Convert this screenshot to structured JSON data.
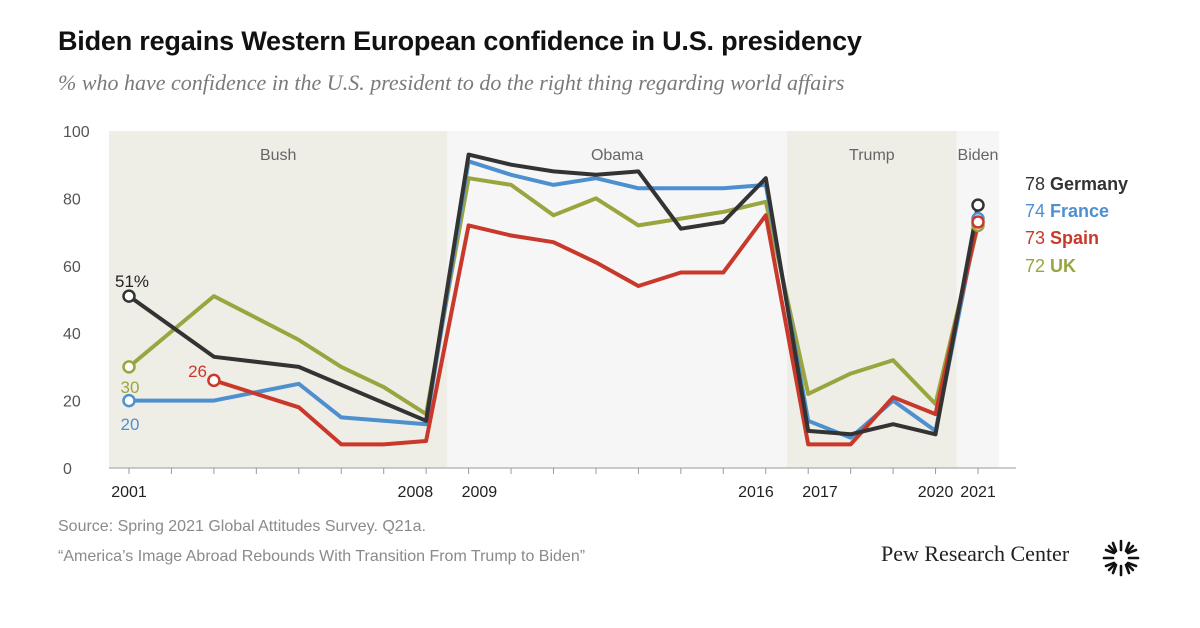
{
  "title": "Biden regains Western European confidence in U.S. presidency",
  "subtitle": "% who have confidence in the U.S. president to do the right thing regarding world affairs",
  "source": "Source: Spring 2021 Global Attitudes Survey. Q21a.",
  "note": "“America’s Image Abroad Rebounds With Transition From Trump to Biden”",
  "brand": "Pew Research Center",
  "chart_data": {
    "type": "line",
    "ylim": [
      0,
      100
    ],
    "yticks": [
      0,
      20,
      40,
      60,
      80,
      100
    ],
    "xlim": [
      2001,
      2021.5
    ],
    "xtick_labels": [
      {
        "x": 2001,
        "label": "2001"
      },
      {
        "x": 2008,
        "label": "2008"
      },
      {
        "x": 2009,
        "label": "2009"
      },
      {
        "x": 2016,
        "label": "2016"
      },
      {
        "x": 2017,
        "label": "2017"
      },
      {
        "x": 2020,
        "label": "2020"
      },
      {
        "x": 2021,
        "label": "2021"
      }
    ],
    "grid": false,
    "eras": [
      {
        "name": "Bush",
        "start": 2000.5,
        "end": 2008.5,
        "color": "#efeee6"
      },
      {
        "name": "Obama",
        "start": 2008.5,
        "end": 2016.5,
        "color": "#f6f6f6"
      },
      {
        "name": "Trump",
        "start": 2016.5,
        "end": 2020.5,
        "color": "#efeee6"
      },
      {
        "name": "Biden",
        "start": 2020.5,
        "end": 2021.5,
        "color": "#f6f6f6"
      }
    ],
    "series": [
      {
        "name": "UK",
        "color": "#9aa53f",
        "points": [
          [
            2001,
            30
          ],
          [
            2003,
            51
          ],
          [
            2005,
            38
          ],
          [
            2006,
            30
          ],
          [
            2007,
            24
          ],
          [
            2008,
            16
          ],
          [
            2009,
            86
          ],
          [
            2010,
            84
          ],
          [
            2011,
            75
          ],
          [
            2012,
            80
          ],
          [
            2013,
            72
          ],
          [
            2014,
            74
          ],
          [
            2015,
            76
          ],
          [
            2016,
            79
          ],
          [
            2017,
            22
          ],
          [
            2018,
            28
          ],
          [
            2019,
            32
          ],
          [
            2020,
            19
          ],
          [
            2021,
            72
          ]
        ],
        "start_label": "30",
        "end_label": {
          "value": "72",
          "name": "UK"
        }
      },
      {
        "name": "France",
        "color": "#4e90cf",
        "points": [
          [
            2001,
            20
          ],
          [
            2003,
            20
          ],
          [
            2005,
            25
          ],
          [
            2006,
            15
          ],
          [
            2007,
            14
          ],
          [
            2008,
            13
          ],
          [
            2009,
            91
          ],
          [
            2010,
            87
          ],
          [
            2011,
            84
          ],
          [
            2012,
            86
          ],
          [
            2013,
            83
          ],
          [
            2014,
            83
          ],
          [
            2015,
            83
          ],
          [
            2016,
            84
          ],
          [
            2017,
            14
          ],
          [
            2018,
            9
          ],
          [
            2019,
            20
          ],
          [
            2020,
            11
          ],
          [
            2021,
            74
          ]
        ],
        "start_label": "20",
        "end_label": {
          "value": "74",
          "name": "France"
        }
      },
      {
        "name": "Spain",
        "color": "#c9392b",
        "points": [
          [
            2003,
            26
          ],
          [
            2005,
            18
          ],
          [
            2006,
            7
          ],
          [
            2007,
            7
          ],
          [
            2008,
            8
          ],
          [
            2009,
            72
          ],
          [
            2010,
            69
          ],
          [
            2011,
            67
          ],
          [
            2012,
            61
          ],
          [
            2013,
            54
          ],
          [
            2014,
            58
          ],
          [
            2015,
            58
          ],
          [
            2016,
            75
          ],
          [
            2017,
            7
          ],
          [
            2018,
            7
          ],
          [
            2019,
            21
          ],
          [
            2020,
            16
          ],
          [
            2021,
            73
          ]
        ],
        "start_label": "26",
        "end_label": {
          "value": "73",
          "name": "Spain"
        }
      },
      {
        "name": "Germany",
        "color": "#333333",
        "points": [
          [
            2001,
            51
          ],
          [
            2003,
            33
          ],
          [
            2005,
            30
          ],
          [
            2008,
            14
          ],
          [
            2009,
            93
          ],
          [
            2010,
            90
          ],
          [
            2011,
            88
          ],
          [
            2012,
            87
          ],
          [
            2013,
            88
          ],
          [
            2014,
            71
          ],
          [
            2015,
            73
          ],
          [
            2016,
            86
          ],
          [
            2017,
            11
          ],
          [
            2018,
            10
          ],
          [
            2019,
            13
          ],
          [
            2020,
            10
          ],
          [
            2021,
            78
          ]
        ],
        "start_label": "51%",
        "end_label": {
          "value": "78",
          "name": "Germany"
        }
      }
    ]
  }
}
